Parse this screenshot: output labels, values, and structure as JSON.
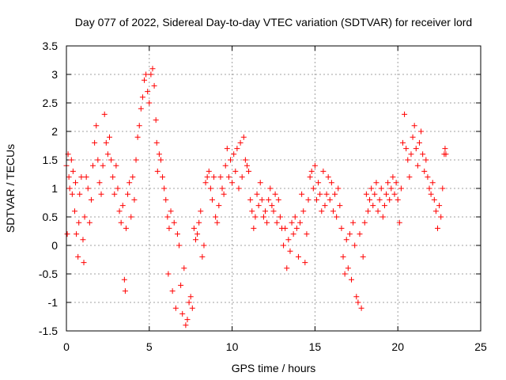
{
  "chart_data": {
    "type": "scatter",
    "title": "Day 077 of 2022, Sidereal Day-to-day VTEC variation (SDTVAR) for receiver lord",
    "xlabel": "GPS time / hours",
    "ylabel": "SDTVAR / TECUs",
    "xlim": [
      0,
      25
    ],
    "ylim": [
      -1.5,
      3.5
    ],
    "xticks": [
      "0",
      "5",
      "10",
      "15",
      "20",
      "25"
    ],
    "yticks": [
      "-1.5",
      "-1",
      "-0.5",
      "0",
      "0.5",
      "1",
      "1.5",
      "2",
      "2.5",
      "3",
      "3.5"
    ],
    "grid": true,
    "marker": "plus",
    "color": "#ff0000",
    "series": [
      {
        "name": "SDTVAR",
        "points": [
          [
            0.0,
            1.4
          ],
          [
            0.05,
            0.2
          ],
          [
            0.1,
            1.6
          ],
          [
            0.15,
            1.2
          ],
          [
            0.2,
            1.0
          ],
          [
            0.3,
            1.5
          ],
          [
            0.35,
            0.9
          ],
          [
            0.4,
            1.3
          ],
          [
            0.5,
            0.6
          ],
          [
            0.55,
            1.1
          ],
          [
            0.6,
            0.2
          ],
          [
            0.7,
            -0.2
          ],
          [
            0.75,
            0.4
          ],
          [
            0.8,
            0.9
          ],
          [
            0.9,
            1.2
          ],
          [
            1.0,
            0.1
          ],
          [
            1.05,
            -0.3
          ],
          [
            1.1,
            0.5
          ],
          [
            1.2,
            1.2
          ],
          [
            1.3,
            1.0
          ],
          [
            1.4,
            0.4
          ],
          [
            1.5,
            0.8
          ],
          [
            1.6,
            1.4
          ],
          [
            1.7,
            1.8
          ],
          [
            1.8,
            2.1
          ],
          [
            1.9,
            1.5
          ],
          [
            2.0,
            1.1
          ],
          [
            2.1,
            0.9
          ],
          [
            2.2,
            1.4
          ],
          [
            2.3,
            2.3
          ],
          [
            2.4,
            1.8
          ],
          [
            2.5,
            1.6
          ],
          [
            2.6,
            1.9
          ],
          [
            2.7,
            1.5
          ],
          [
            2.8,
            1.2
          ],
          [
            2.9,
            0.9
          ],
          [
            3.0,
            1.4
          ],
          [
            3.1,
            1.0
          ],
          [
            3.2,
            0.6
          ],
          [
            3.3,
            0.4
          ],
          [
            3.4,
            0.7
          ],
          [
            3.5,
            -0.6
          ],
          [
            3.55,
            -0.8
          ],
          [
            3.6,
            0.3
          ],
          [
            3.7,
            0.9
          ],
          [
            3.8,
            1.1
          ],
          [
            3.9,
            0.5
          ],
          [
            4.0,
            1.2
          ],
          [
            4.1,
            0.8
          ],
          [
            4.2,
            1.5
          ],
          [
            4.3,
            1.9
          ],
          [
            4.4,
            2.1
          ],
          [
            4.5,
            2.4
          ],
          [
            4.6,
            2.6
          ],
          [
            4.7,
            2.9
          ],
          [
            4.8,
            3.0
          ],
          [
            4.9,
            2.7
          ],
          [
            5.0,
            2.5
          ],
          [
            5.1,
            3.0
          ],
          [
            5.2,
            3.1
          ],
          [
            5.3,
            2.8
          ],
          [
            5.4,
            2.2
          ],
          [
            5.45,
            1.8
          ],
          [
            5.5,
            1.3
          ],
          [
            5.6,
            1.6
          ],
          [
            5.7,
            1.5
          ],
          [
            5.8,
            1.2
          ],
          [
            5.9,
            1.0
          ],
          [
            6.0,
            0.8
          ],
          [
            6.1,
            0.5
          ],
          [
            6.15,
            -0.5
          ],
          [
            6.2,
            0.3
          ],
          [
            6.3,
            0.6
          ],
          [
            6.4,
            -0.8
          ],
          [
            6.5,
            0.4
          ],
          [
            6.6,
            -1.1
          ],
          [
            6.7,
            0.2
          ],
          [
            6.8,
            0.0
          ],
          [
            6.9,
            -0.7
          ],
          [
            7.0,
            -1.2
          ],
          [
            7.1,
            -0.4
          ],
          [
            7.2,
            -1.4
          ],
          [
            7.3,
            -1.3
          ],
          [
            7.4,
            -1.0
          ],
          [
            7.5,
            -0.9
          ],
          [
            7.6,
            -1.1
          ],
          [
            7.7,
            0.3
          ],
          [
            7.8,
            0.1
          ],
          [
            7.9,
            0.2
          ],
          [
            8.0,
            0.4
          ],
          [
            8.1,
            0.6
          ],
          [
            8.2,
            -0.2
          ],
          [
            8.3,
            0.0
          ],
          [
            8.4,
            1.1
          ],
          [
            8.5,
            1.2
          ],
          [
            8.6,
            1.3
          ],
          [
            8.7,
            1.0
          ],
          [
            8.8,
            0.8
          ],
          [
            8.9,
            1.2
          ],
          [
            9.0,
            0.5
          ],
          [
            9.1,
            0.4
          ],
          [
            9.2,
            0.7
          ],
          [
            9.3,
            1.2
          ],
          [
            9.4,
            1.0
          ],
          [
            9.5,
            0.9
          ],
          [
            9.6,
            1.4
          ],
          [
            9.7,
            1.7
          ],
          [
            9.8,
            1.2
          ],
          [
            9.9,
            1.5
          ],
          [
            10.0,
            1.1
          ],
          [
            10.1,
            1.6
          ],
          [
            10.2,
            1.3
          ],
          [
            10.3,
            1.7
          ],
          [
            10.4,
            1.0
          ],
          [
            10.5,
            1.8
          ],
          [
            10.6,
            1.2
          ],
          [
            10.7,
            1.9
          ],
          [
            10.8,
            1.5
          ],
          [
            10.9,
            1.4
          ],
          [
            11.0,
            1.3
          ],
          [
            11.1,
            0.8
          ],
          [
            11.2,
            0.6
          ],
          [
            11.3,
            0.3
          ],
          [
            11.4,
            0.5
          ],
          [
            11.5,
            0.9
          ],
          [
            11.6,
            0.7
          ],
          [
            11.7,
            1.1
          ],
          [
            11.8,
            0.8
          ],
          [
            11.9,
            0.5
          ],
          [
            12.0,
            0.6
          ],
          [
            12.1,
            0.4
          ],
          [
            12.2,
            0.8
          ],
          [
            12.3,
            1.0
          ],
          [
            12.4,
            0.7
          ],
          [
            12.5,
            0.6
          ],
          [
            12.6,
            0.9
          ],
          [
            12.7,
            0.4
          ],
          [
            12.8,
            0.8
          ],
          [
            12.9,
            0.5
          ],
          [
            13.0,
            0.3
          ],
          [
            13.1,
            0.0
          ],
          [
            13.2,
            0.3
          ],
          [
            13.3,
            -0.4
          ],
          [
            13.4,
            0.1
          ],
          [
            13.5,
            -0.1
          ],
          [
            13.6,
            0.4
          ],
          [
            13.7,
            0.2
          ],
          [
            13.8,
            0.5
          ],
          [
            13.9,
            0.3
          ],
          [
            14.0,
            -0.2
          ],
          [
            14.1,
            0.4
          ],
          [
            14.2,
            0.9
          ],
          [
            14.3,
            0.6
          ],
          [
            14.4,
            -0.3
          ],
          [
            14.5,
            0.2
          ],
          [
            14.6,
            0.8
          ],
          [
            14.7,
            1.2
          ],
          [
            14.8,
            1.3
          ],
          [
            14.9,
            1.0
          ],
          [
            15.0,
            1.4
          ],
          [
            15.1,
            0.8
          ],
          [
            15.2,
            1.1
          ],
          [
            15.3,
            0.9
          ],
          [
            15.4,
            0.6
          ],
          [
            15.5,
            1.3
          ],
          [
            15.6,
            0.7
          ],
          [
            15.7,
            0.9
          ],
          [
            15.8,
            1.2
          ],
          [
            15.9,
            0.8
          ],
          [
            16.0,
            1.1
          ],
          [
            16.1,
            0.6
          ],
          [
            16.2,
            0.9
          ],
          [
            16.3,
            0.5
          ],
          [
            16.4,
            1.0
          ],
          [
            16.5,
            0.7
          ],
          [
            16.6,
            0.3
          ],
          [
            16.7,
            -0.2
          ],
          [
            16.8,
            -0.5
          ],
          [
            16.9,
            0.1
          ],
          [
            17.0,
            -0.4
          ],
          [
            17.1,
            0.2
          ],
          [
            17.2,
            -0.6
          ],
          [
            17.3,
            0.4
          ],
          [
            17.4,
            0.0
          ],
          [
            17.5,
            -0.9
          ],
          [
            17.6,
            -1.0
          ],
          [
            17.7,
            0.2
          ],
          [
            17.8,
            -1.1
          ],
          [
            17.9,
            -0.2
          ],
          [
            18.0,
            0.4
          ],
          [
            18.1,
            0.9
          ],
          [
            18.2,
            0.6
          ],
          [
            18.3,
            0.8
          ],
          [
            18.4,
            1.0
          ],
          [
            18.5,
            0.7
          ],
          [
            18.6,
            0.9
          ],
          [
            18.7,
            1.1
          ],
          [
            18.8,
            0.6
          ],
          [
            18.9,
            0.8
          ],
          [
            19.0,
            1.0
          ],
          [
            19.1,
            0.5
          ],
          [
            19.2,
            0.7
          ],
          [
            19.3,
            0.9
          ],
          [
            19.4,
            1.1
          ],
          [
            19.5,
            0.8
          ],
          [
            19.6,
            1.0
          ],
          [
            19.7,
            1.2
          ],
          [
            19.8,
            0.9
          ],
          [
            19.9,
            1.1
          ],
          [
            20.0,
            0.8
          ],
          [
            20.1,
            0.4
          ],
          [
            20.2,
            1.0
          ],
          [
            20.3,
            1.8
          ],
          [
            20.4,
            2.3
          ],
          [
            20.5,
            1.7
          ],
          [
            20.6,
            1.5
          ],
          [
            20.7,
            1.2
          ],
          [
            20.8,
            1.6
          ],
          [
            20.9,
            1.9
          ],
          [
            21.0,
            2.1
          ],
          [
            21.1,
            1.7
          ],
          [
            21.2,
            1.4
          ],
          [
            21.3,
            1.8
          ],
          [
            21.4,
            2.0
          ],
          [
            21.5,
            1.6
          ],
          [
            21.6,
            1.3
          ],
          [
            21.7,
            1.5
          ],
          [
            21.8,
            1.2
          ],
          [
            21.9,
            1.0
          ],
          [
            22.0,
            0.9
          ],
          [
            22.1,
            1.1
          ],
          [
            22.2,
            0.8
          ],
          [
            22.3,
            0.6
          ],
          [
            22.4,
            0.3
          ],
          [
            22.5,
            0.7
          ],
          [
            22.6,
            0.5
          ],
          [
            22.7,
            1.0
          ],
          [
            22.8,
            1.6
          ],
          [
            22.85,
            1.7
          ],
          [
            22.9,
            1.6
          ]
        ]
      }
    ]
  }
}
